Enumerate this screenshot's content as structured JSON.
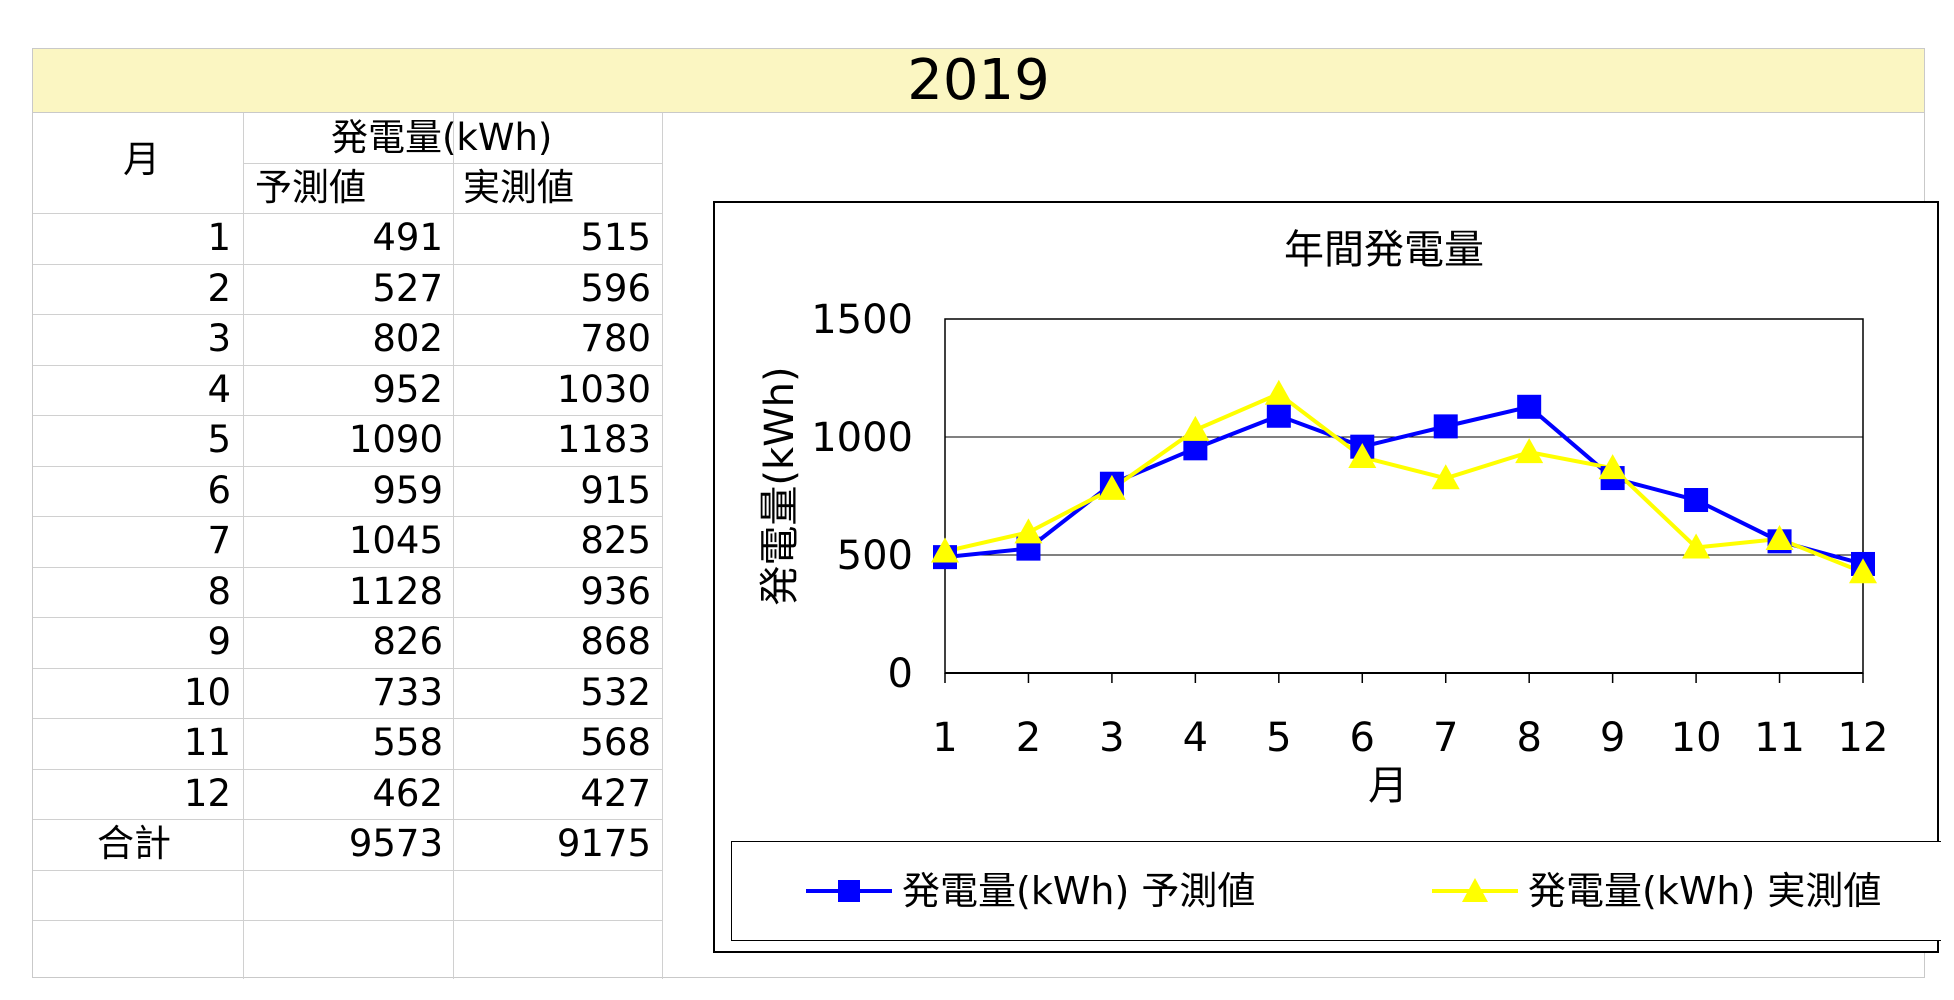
{
  "banner": {
    "year": "2019"
  },
  "table": {
    "header_month": "月",
    "header_group": "発電量(kWh)",
    "header_pred": "予測値",
    "header_actual": "実測値",
    "rows": [
      {
        "month": "1",
        "pred": "491",
        "actual": "515"
      },
      {
        "month": "2",
        "pred": "527",
        "actual": "596"
      },
      {
        "month": "3",
        "pred": "802",
        "actual": "780"
      },
      {
        "month": "4",
        "pred": "952",
        "actual": "1030"
      },
      {
        "month": "5",
        "pred": "1090",
        "actual": "1183"
      },
      {
        "month": "6",
        "pred": "959",
        "actual": "915"
      },
      {
        "month": "7",
        "pred": "1045",
        "actual": "825"
      },
      {
        "month": "8",
        "pred": "1128",
        "actual": "936"
      },
      {
        "month": "9",
        "pred": "826",
        "actual": "868"
      },
      {
        "month": "10",
        "pred": "733",
        "actual": "532"
      },
      {
        "month": "11",
        "pred": "558",
        "actual": "568"
      },
      {
        "month": "12",
        "pred": "462",
        "actual": "427"
      }
    ],
    "total_label": "合計",
    "total_pred": "9573",
    "total_actual": "9175"
  },
  "chart_data": {
    "type": "line",
    "title": "年間発電量",
    "xlabel": "月",
    "ylabel": "発電量(kWh)",
    "categories": [
      "1",
      "2",
      "3",
      "4",
      "5",
      "6",
      "7",
      "8",
      "9",
      "10",
      "11",
      "12"
    ],
    "ylim": [
      0,
      1500
    ],
    "yticks": [
      0,
      500,
      1000,
      1500
    ],
    "grid": true,
    "legend_position": "bottom",
    "series": [
      {
        "name": "発電量(kWh) 予測値",
        "color": "#0000ff",
        "marker": "square",
        "values": [
          491,
          527,
          802,
          952,
          1090,
          959,
          1045,
          1128,
          826,
          733,
          558,
          462
        ]
      },
      {
        "name": "発電量(kWh) 実測値",
        "color": "#ffff00",
        "marker": "triangle",
        "values": [
          515,
          596,
          780,
          1030,
          1183,
          915,
          825,
          936,
          868,
          532,
          568,
          427
        ]
      }
    ]
  }
}
